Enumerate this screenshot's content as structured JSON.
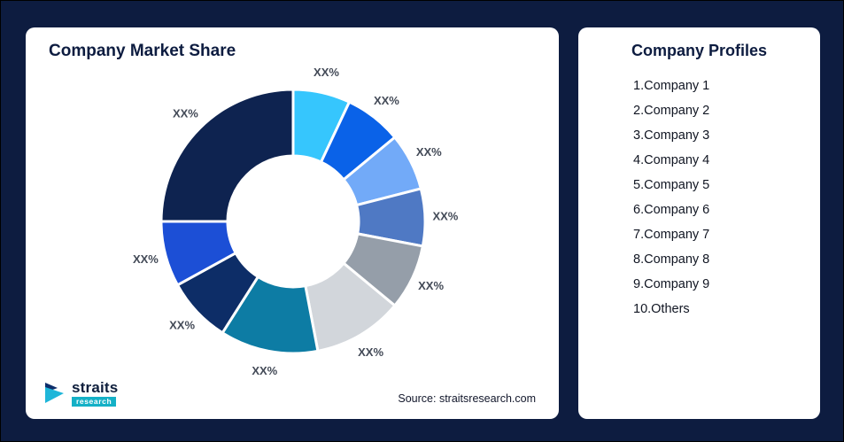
{
  "page": {
    "background": "#0d1c40"
  },
  "chart_card": {
    "title": "Company Market Share",
    "source_note": "Source: straitsresearch.com"
  },
  "logo": {
    "name": "straits",
    "tagline": "research"
  },
  "profiles": {
    "title": "Company Profiles",
    "items": [
      "1.Company 1",
      "2.Company 2",
      "3.Company 3",
      "4.Company 4",
      "5.Company 5",
      "6.Company 6",
      "7.Company 7",
      "8.Company 8",
      "9.Company 9",
      "10.Others"
    ]
  },
  "chart_data": {
    "type": "pie",
    "subtype": "donut",
    "title": "Company Market Share",
    "label_text": "XX%",
    "legend_position": "none",
    "start_angle_deg": 0,
    "direction": "clockwise",
    "segments": [
      {
        "name": "Company 1",
        "value": 7,
        "label": "XX%",
        "color": "#36c6fd"
      },
      {
        "name": "Company 2",
        "value": 7,
        "label": "XX%",
        "color": "#0a62e8"
      },
      {
        "name": "Company 3",
        "value": 7,
        "label": "XX%",
        "color": "#72aaf8"
      },
      {
        "name": "Company 4",
        "value": 7,
        "label": "XX%",
        "color": "#4f79c4"
      },
      {
        "name": "Company 5",
        "value": 8,
        "label": "XX%",
        "color": "#959ea9"
      },
      {
        "name": "Company 6",
        "value": 11,
        "label": "XX%",
        "color": "#d2d6db"
      },
      {
        "name": "Company 7",
        "value": 12,
        "label": "XX%",
        "color": "#0d7ca4"
      },
      {
        "name": "Company 8",
        "value": 8,
        "label": "XX%",
        "color": "#0d2d67"
      },
      {
        "name": "Company 9",
        "value": 8,
        "label": "XX%",
        "color": "#1c4fd6"
      },
      {
        "name": "Others",
        "value": 25,
        "label": "XX%",
        "color": "#0e2350"
      }
    ]
  }
}
